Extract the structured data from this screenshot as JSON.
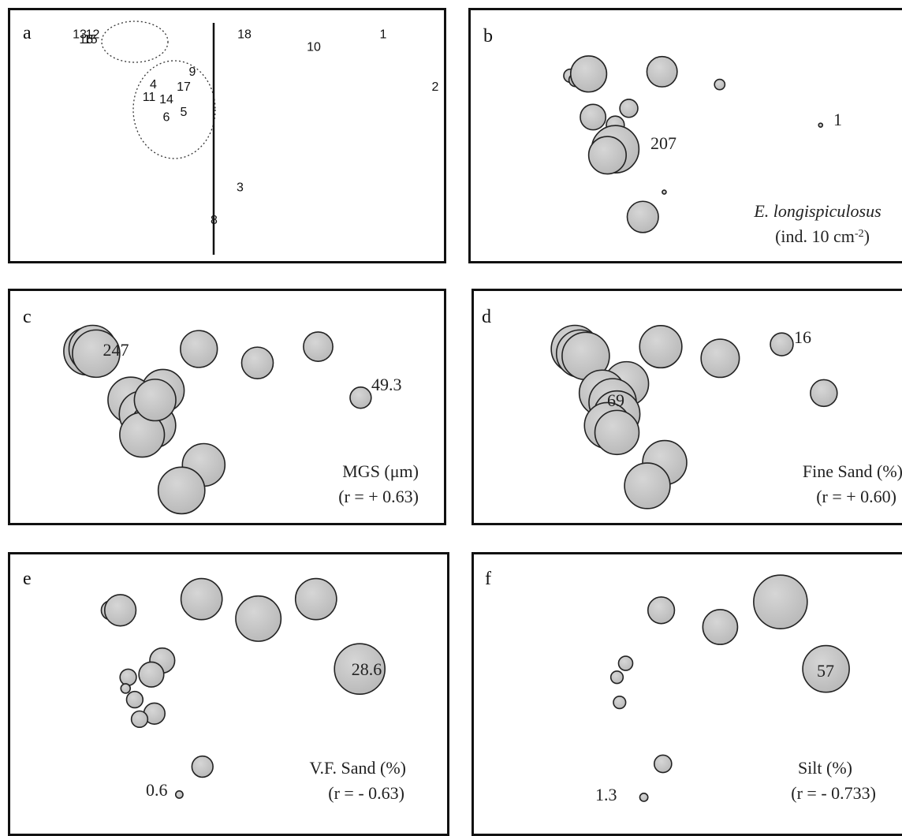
{
  "chart_data": [
    {
      "panel": "a",
      "type": "scatter",
      "title": "",
      "axis_line": "vertical",
      "groups": [
        "13,12,16,15",
        "4,9,17,11,14,5,6"
      ],
      "points": [
        {
          "label": "13",
          "x": 0.16,
          "y": 0.08
        },
        {
          "label": "12",
          "x": 0.19,
          "y": 0.08
        },
        {
          "label": "16",
          "x": 0.175,
          "y": 0.1
        },
        {
          "label": "15",
          "x": 0.185,
          "y": 0.1
        },
        {
          "label": "18",
          "x": 0.54,
          "y": 0.08
        },
        {
          "label": "10",
          "x": 0.7,
          "y": 0.13
        },
        {
          "label": "1",
          "x": 0.86,
          "y": 0.08
        },
        {
          "label": "9",
          "x": 0.42,
          "y": 0.23
        },
        {
          "label": "4",
          "x": 0.33,
          "y": 0.28
        },
        {
          "label": "17",
          "x": 0.4,
          "y": 0.29
        },
        {
          "label": "2",
          "x": 0.98,
          "y": 0.29
        },
        {
          "label": "11",
          "x": 0.32,
          "y": 0.33
        },
        {
          "label": "14",
          "x": 0.36,
          "y": 0.34
        },
        {
          "label": "5",
          "x": 0.4,
          "y": 0.39
        },
        {
          "label": "6",
          "x": 0.36,
          "y": 0.41
        },
        {
          "label": "3",
          "x": 0.53,
          "y": 0.69
        },
        {
          "label": "8",
          "x": 0.47,
          "y": 0.82
        }
      ]
    },
    {
      "panel": "b",
      "type": "bubble",
      "title": "E. longispiculosus",
      "unit": "(ind. 10 cm",
      "unit_sup": "-2",
      "unit_close": ")",
      "max_label": "207",
      "min_label": "1",
      "bubbles": [
        {
          "x": 0.228,
          "y": 0.261,
          "v": 16
        },
        {
          "x": 0.24,
          "y": 0.278,
          "v": 16
        },
        {
          "x": 0.262,
          "y": 0.271,
          "v": 16
        },
        {
          "x": 0.27,
          "y": 0.254,
          "v": 120
        },
        {
          "x": 0.438,
          "y": 0.245,
          "v": 85
        },
        {
          "x": 0.57,
          "y": 0.296,
          "v": 10
        },
        {
          "x": 0.28,
          "y": 0.426,
          "v": 60
        },
        {
          "x": 0.362,
          "y": 0.391,
          "v": 30
        },
        {
          "x": 0.331,
          "y": 0.458,
          "v": 30
        },
        {
          "x": 0.331,
          "y": 0.554,
          "v": 207
        },
        {
          "x": 0.313,
          "y": 0.578,
          "v": 130
        },
        {
          "x": 0.801,
          "y": 0.458,
          "v": 1
        },
        {
          "x": 0.443,
          "y": 0.725,
          "v": 1
        },
        {
          "x": 0.394,
          "y": 0.824,
          "v": 90
        }
      ]
    },
    {
      "panel": "c",
      "type": "bubble",
      "title": "MGS  (μm)",
      "r_text": "(r = + 0.63)",
      "max_label": "247",
      "min_label": "49.3",
      "bubbles": [
        {
          "x": 0.178,
          "y": 0.26,
          "v": 247
        },
        {
          "x": 0.19,
          "y": 0.25,
          "v": 247
        },
        {
          "x": 0.198,
          "y": 0.27,
          "v": 247
        },
        {
          "x": 0.435,
          "y": 0.25,
          "v": 150
        },
        {
          "x": 0.57,
          "y": 0.31,
          "v": 110
        },
        {
          "x": 0.71,
          "y": 0.24,
          "v": 95
        },
        {
          "x": 0.808,
          "y": 0.46,
          "v": 49.3
        },
        {
          "x": 0.352,
          "y": 0.43,
          "v": 200
        },
        {
          "x": 0.278,
          "y": 0.47,
          "v": 230
        },
        {
          "x": 0.304,
          "y": 0.53,
          "v": 230
        },
        {
          "x": 0.33,
          "y": 0.58,
          "v": 220
        },
        {
          "x": 0.304,
          "y": 0.62,
          "v": 220
        },
        {
          "x": 0.334,
          "y": 0.47,
          "v": 190
        },
        {
          "x": 0.446,
          "y": 0.75,
          "v": 200
        },
        {
          "x": 0.395,
          "y": 0.86,
          "v": 240
        }
      ]
    },
    {
      "panel": "d",
      "type": "bubble",
      "title": "Fine Sand (%)",
      "r_text": "(r = + 0.60)",
      "max_label": "69",
      "min_label": "16",
      "bubbles": [
        {
          "x": 0.233,
          "y": 0.25,
          "v": 69
        },
        {
          "x": 0.245,
          "y": 0.27,
          "v": 69
        },
        {
          "x": 0.258,
          "y": 0.28,
          "v": 69
        },
        {
          "x": 0.431,
          "y": 0.24,
          "v": 55
        },
        {
          "x": 0.568,
          "y": 0.29,
          "v": 45
        },
        {
          "x": 0.71,
          "y": 0.23,
          "v": 16
        },
        {
          "x": 0.807,
          "y": 0.44,
          "v": 22
        },
        {
          "x": 0.352,
          "y": 0.4,
          "v": 60
        },
        {
          "x": 0.296,
          "y": 0.44,
          "v": 65
        },
        {
          "x": 0.32,
          "y": 0.48,
          "v": 69
        },
        {
          "x": 0.33,
          "y": 0.53,
          "v": 65
        },
        {
          "x": 0.308,
          "y": 0.58,
          "v": 65
        },
        {
          "x": 0.33,
          "y": 0.61,
          "v": 60
        },
        {
          "x": 0.44,
          "y": 0.74,
          "v": 60
        },
        {
          "x": 0.4,
          "y": 0.84,
          "v": 64
        }
      ]
    },
    {
      "panel": "e",
      "type": "bubble",
      "title": "V.F. Sand (%)",
      "r_text": "(r = - 0.63)",
      "max_label": "28.6",
      "min_label": "0.6",
      "bubbles": [
        {
          "x": 0.23,
          "y": 0.2,
          "v": 4
        },
        {
          "x": 0.252,
          "y": 0.2,
          "v": 11
        },
        {
          "x": 0.438,
          "y": 0.16,
          "v": 19
        },
        {
          "x": 0.568,
          "y": 0.23,
          "v": 23
        },
        {
          "x": 0.7,
          "y": 0.16,
          "v": 19
        },
        {
          "x": 0.8,
          "y": 0.41,
          "v": 28.6
        },
        {
          "x": 0.348,
          "y": 0.38,
          "v": 7
        },
        {
          "x": 0.323,
          "y": 0.43,
          "v": 7
        },
        {
          "x": 0.27,
          "y": 0.44,
          "v": 3
        },
        {
          "x": 0.264,
          "y": 0.48,
          "v": 1
        },
        {
          "x": 0.285,
          "y": 0.52,
          "v": 3
        },
        {
          "x": 0.33,
          "y": 0.57,
          "v": 5
        },
        {
          "x": 0.296,
          "y": 0.59,
          "v": 3
        },
        {
          "x": 0.44,
          "y": 0.76,
          "v": 5
        },
        {
          "x": 0.387,
          "y": 0.86,
          "v": 0.6
        }
      ]
    },
    {
      "panel": "f",
      "type": "bubble",
      "title": "Silt (%)",
      "r_text": "(r = - 0.733)",
      "max_label": "57",
      "min_label": "1.3",
      "bubbles": [
        {
          "x": 0.432,
          "y": 0.2,
          "v": 14
        },
        {
          "x": 0.568,
          "y": 0.26,
          "v": 24
        },
        {
          "x": 0.707,
          "y": 0.17,
          "v": 57
        },
        {
          "x": 0.812,
          "y": 0.41,
          "v": 43
        },
        {
          "x": 0.35,
          "y": 0.39,
          "v": 4
        },
        {
          "x": 0.33,
          "y": 0.44,
          "v": 3
        },
        {
          "x": 0.336,
          "y": 0.53,
          "v": 3
        },
        {
          "x": 0.436,
          "y": 0.75,
          "v": 6
        },
        {
          "x": 0.392,
          "y": 0.87,
          "v": 1.3
        }
      ]
    }
  ],
  "style": {
    "bubble_fill": "#b8b8b8",
    "bubble_stroke": "#222222",
    "border": "#111111"
  }
}
